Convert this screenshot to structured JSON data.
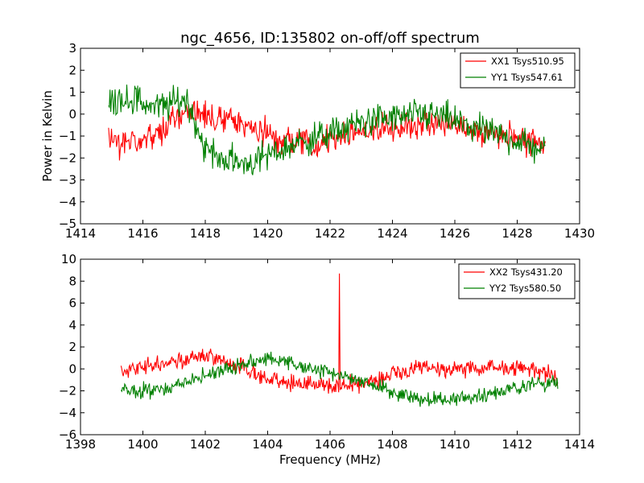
{
  "title": "ngc_4656, ID:135802 on-off/off spectrum",
  "ylabel": "Power in Kelvin",
  "xlabel": "Frequency (MHz)",
  "colors": {
    "red": "#ff0000",
    "green": "#008000"
  },
  "chart_data": [
    {
      "type": "line",
      "title": "ngc_4656, ID:135802 on-off/off spectrum",
      "xlabel": "",
      "ylabel": "Power in Kelvin",
      "xlim": [
        1414,
        1430
      ],
      "ylim": [
        -5,
        3
      ],
      "xticks": [
        1414,
        1416,
        1418,
        1420,
        1422,
        1424,
        1426,
        1428,
        1430
      ],
      "yticks": [
        3,
        2,
        1,
        0,
        -1,
        -2,
        -3,
        -4,
        -5
      ],
      "legend_position": "top-right",
      "series": [
        {
          "name": "XX1 Tsys510.95",
          "color": "#ff0000",
          "x": [
            1414.9,
            1415.5,
            1416.0,
            1416.5,
            1417.0,
            1417.4,
            1418.0,
            1418.5,
            1419.0,
            1419.5,
            1420.0,
            1420.5,
            1421.0,
            1421.5,
            1422.0,
            1422.5,
            1423.0,
            1423.5,
            1424.0,
            1424.5,
            1425.0,
            1425.5,
            1426.0,
            1426.5,
            1427.0,
            1427.5,
            1428.0,
            1428.5,
            1428.9
          ],
          "y": [
            -1.2,
            -1.3,
            -1.1,
            -1.0,
            -0.3,
            0.2,
            -0.2,
            -0.3,
            -0.4,
            -0.6,
            -0.9,
            -1.2,
            -1.3,
            -1.3,
            -1.1,
            -0.9,
            -0.8,
            -0.7,
            -0.6,
            -0.5,
            -0.4,
            -0.4,
            -0.5,
            -0.7,
            -0.8,
            -0.9,
            -1.0,
            -1.2,
            -1.3
          ],
          "noise": 0.55
        },
        {
          "name": "YY1 Tsys547.61",
          "color": "#008000",
          "x": [
            1414.9,
            1415.5,
            1416.0,
            1416.5,
            1417.0,
            1417.4,
            1418.0,
            1418.5,
            1419.0,
            1419.5,
            1420.0,
            1420.5,
            1421.0,
            1421.5,
            1422.0,
            1422.5,
            1423.0,
            1423.5,
            1424.0,
            1424.5,
            1425.0,
            1425.5,
            1426.0,
            1426.5,
            1427.0,
            1427.5,
            1428.0,
            1428.5,
            1428.9
          ],
          "y": [
            0.5,
            0.8,
            0.5,
            0.3,
            0.5,
            0.7,
            -1.6,
            -2.0,
            -2.2,
            -2.2,
            -1.9,
            -1.6,
            -1.3,
            -1.1,
            -0.9,
            -0.6,
            -0.4,
            -0.2,
            -0.2,
            -0.1,
            0.0,
            -0.1,
            -0.3,
            -0.6,
            -0.8,
            -1.0,
            -1.2,
            -1.5,
            -1.6
          ],
          "noise": 0.6
        }
      ]
    },
    {
      "type": "line",
      "title": "",
      "xlabel": "Frequency (MHz)",
      "ylabel": "",
      "xlim": [
        1398,
        1414
      ],
      "ylim": [
        -6,
        10
      ],
      "xticks": [
        1398,
        1400,
        1402,
        1404,
        1406,
        1408,
        1410,
        1412,
        1414
      ],
      "yticks": [
        10,
        8,
        6,
        4,
        2,
        0,
        -2,
        -4,
        -6
      ],
      "legend_position": "top-right",
      "series": [
        {
          "name": "XX2 Tsys431.20",
          "color": "#ff0000",
          "x": [
            1399.3,
            1400.0,
            1400.5,
            1401.0,
            1401.5,
            1402.0,
            1402.5,
            1403.0,
            1403.5,
            1404.0,
            1404.5,
            1405.0,
            1405.5,
            1406.0,
            1406.3,
            1406.5,
            1407.0,
            1407.5,
            1408.0,
            1408.5,
            1409.0,
            1409.5,
            1410.0,
            1410.5,
            1411.0,
            1411.5,
            1412.0,
            1412.5,
            1413.0,
            1413.3
          ],
          "y": [
            -0.2,
            0.2,
            0.5,
            0.8,
            1.0,
            1.1,
            0.8,
            0.3,
            -0.3,
            -0.8,
            -1.1,
            -1.3,
            -1.5,
            -1.6,
            -1.5,
            -1.5,
            -1.4,
            -1.0,
            -0.5,
            -0.2,
            0.0,
            0.0,
            0.0,
            0.0,
            0.0,
            0.1,
            0.2,
            0.0,
            -0.5,
            -0.8
          ],
          "noise": 0.65,
          "spike": {
            "x": 1406.3,
            "y": 8.7
          }
        },
        {
          "name": "YY2 Tsys580.50",
          "color": "#008000",
          "x": [
            1399.3,
            1400.0,
            1400.5,
            1401.0,
            1401.5,
            1402.0,
            1402.5,
            1403.0,
            1403.5,
            1404.0,
            1404.5,
            1405.0,
            1405.5,
            1406.0,
            1406.5,
            1407.0,
            1407.5,
            1408.0,
            1408.5,
            1409.0,
            1409.5,
            1410.0,
            1410.5,
            1411.0,
            1411.5,
            1412.0,
            1412.5,
            1413.0,
            1413.3
          ],
          "y": [
            -1.8,
            -2.0,
            -1.9,
            -1.6,
            -1.2,
            -0.6,
            -0.1,
            0.3,
            0.6,
            0.9,
            0.7,
            0.3,
            -0.1,
            -0.4,
            -0.7,
            -1.1,
            -1.6,
            -2.1,
            -2.5,
            -2.7,
            -2.8,
            -2.8,
            -2.6,
            -2.3,
            -2.0,
            -1.7,
            -1.4,
            -1.2,
            -1.0
          ],
          "noise": 0.6
        }
      ]
    }
  ]
}
